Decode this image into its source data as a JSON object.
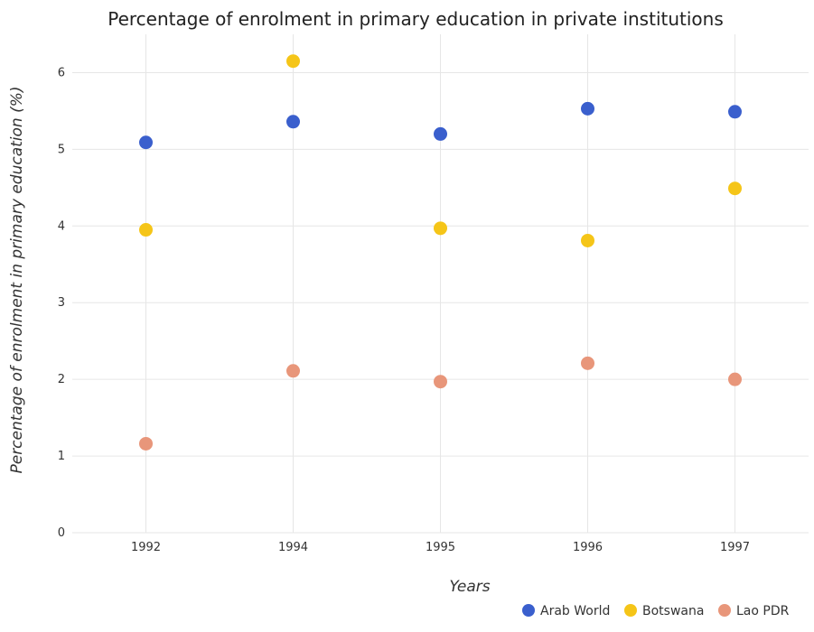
{
  "chart_data": {
    "type": "scatter",
    "title": "Percentage of enrolment in primary education in private institutions",
    "xlabel": "Years",
    "ylabel": "Percentage of enrolment in primary education (%)",
    "categories": [
      "1992",
      "1994",
      "1995",
      "1996",
      "1997"
    ],
    "ylim": [
      0,
      6.5
    ],
    "yticks": [
      0,
      1,
      2,
      3,
      4,
      5,
      6
    ],
    "grid": true,
    "legend_position": "bottom-right",
    "series": [
      {
        "name": "Arab World",
        "color": "#3a5fcd",
        "values": [
          5.09,
          5.36,
          5.2,
          5.53,
          5.49
        ]
      },
      {
        "name": "Botswana",
        "color": "#f5c518",
        "values": [
          3.95,
          6.15,
          3.97,
          3.81,
          4.49
        ]
      },
      {
        "name": "Lao PDR",
        "color": "#e8967a",
        "values": [
          1.16,
          2.11,
          1.97,
          2.21,
          2.0
        ]
      }
    ]
  }
}
